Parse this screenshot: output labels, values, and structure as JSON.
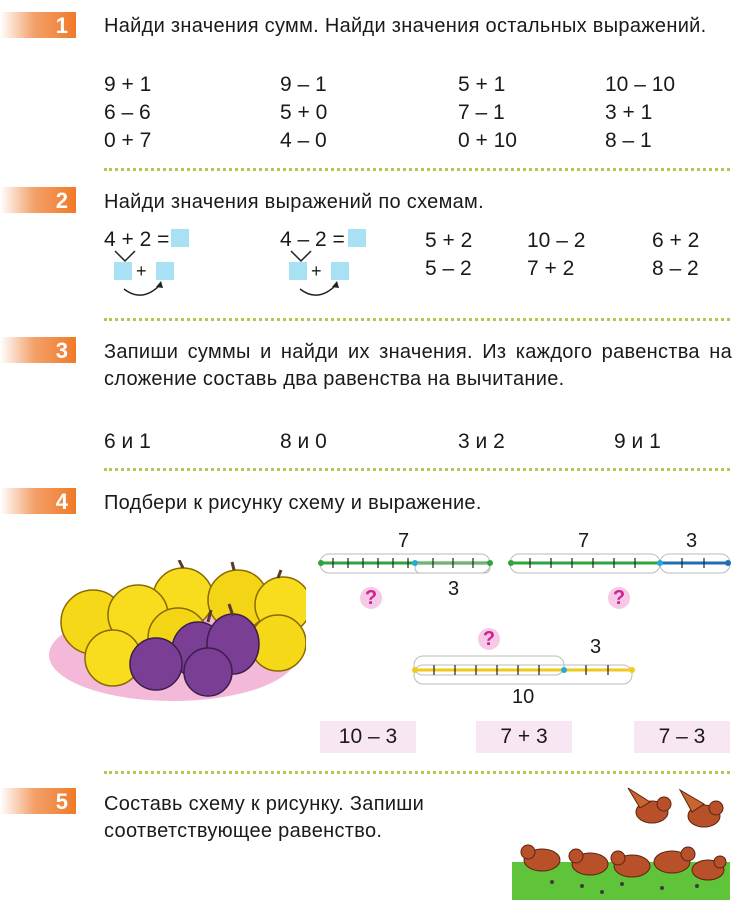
{
  "tasks": [
    {
      "number": "1",
      "text": "Найди значения сумм. Найди значения остальных выражений.",
      "expressions": [
        "9 + 1",
        "6 – 6",
        "0 + 7",
        "9 – 1",
        "5 + 0",
        "4 – 0",
        "5 + 1",
        "7 – 1",
        "0 + 10",
        "10 – 10",
        "3 + 1",
        "8 – 1"
      ]
    },
    {
      "number": "2",
      "text": "Найди значения выражений по схемам.",
      "schemes": [
        {
          "expression": "4 + 2 =",
          "plus": "+"
        },
        {
          "expression": "4 – 2 =",
          "plus": "+"
        }
      ],
      "expressions": [
        "5 + 2",
        "5 – 2",
        "10 – 2",
        "7 + 2",
        "6 + 2",
        "8 – 2"
      ]
    },
    {
      "number": "3",
      "text": "Запиши суммы и найди их значения. Из каждого равенства на сложение составь два равенства на вычитание.",
      "pairs": [
        "6 и 1",
        "8 и 0",
        "3 и 2",
        "9 и 1"
      ]
    },
    {
      "number": "4",
      "text": "Подбери к рисунку схему и выражение.",
      "schemes": [
        {
          "top": "7",
          "bottom": "3",
          "question": "?"
        },
        {
          "top_left": "7",
          "top_right": "3",
          "question": "?"
        },
        {
          "top": "3",
          "bottom": "10",
          "question": "?"
        }
      ],
      "choices": [
        "10 – 3",
        "7 + 3",
        "7 – 3"
      ]
    },
    {
      "number": "5",
      "text": "Составь схему к рисунку. Запиши соответствующее равенство."
    }
  ],
  "colors": {
    "tab": "#f07a28",
    "dots": "#b9c552",
    "answer_box": "#a8e1f3",
    "choice_bg": "#f8e6f3",
    "question": "#d1208f",
    "green_line": "#2fa33c",
    "yellow_line": "#f2c81c",
    "blue_line": "#1f6eb4"
  }
}
